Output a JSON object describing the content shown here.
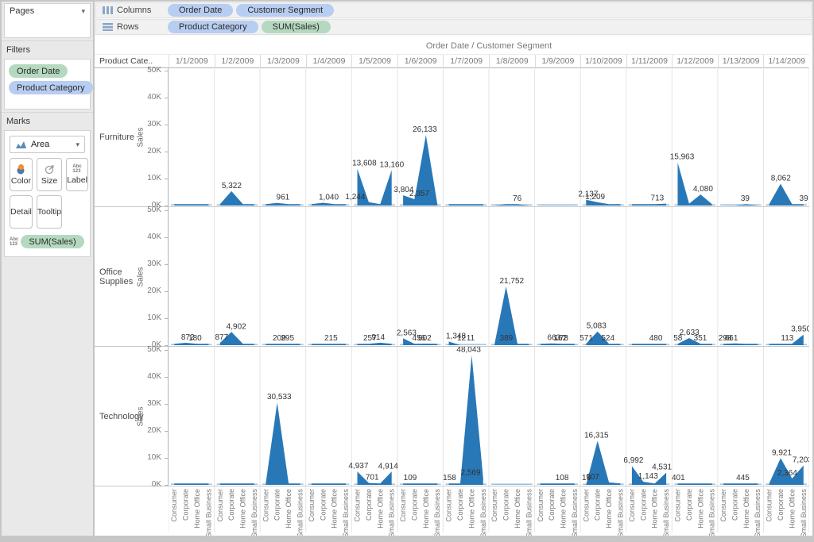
{
  "colors": {
    "area_blue": "#2878b8",
    "area_base_strip": "#9dc2de",
    "dimension_pill": "#b7cdf1",
    "measure_pill": "#b5d9c0",
    "icon_blue": "#4e79a7",
    "icon_orange": "#f28e2b"
  },
  "sidebar": {
    "pages_label": "Pages",
    "filters_label": "Filters",
    "filter_pills": [
      {
        "label": "Order Date",
        "kind": "measure"
      },
      {
        "label": "Product Category",
        "kind": "dimension"
      }
    ],
    "marks": {
      "label": "Marks",
      "mark_type": "Area",
      "buttons": [
        "Color",
        "Size",
        "Label",
        "Detail",
        "Tooltip"
      ],
      "pill_label": "SUM(Sales)"
    }
  },
  "shelves": {
    "columns_label": "Columns",
    "rows_label": "Rows",
    "columns_pills": [
      {
        "label": "Order Date",
        "kind": "dimension"
      },
      {
        "label": "Customer Segment",
        "kind": "dimension"
      }
    ],
    "rows_pills": [
      {
        "label": "Product Category",
        "kind": "dimension"
      },
      {
        "label": "SUM(Sales)",
        "kind": "measure"
      }
    ]
  },
  "chart_data": {
    "type": "area",
    "title": "Order Date  /  Customer Segment",
    "corner_label": "Product Cate..",
    "ylabel": "Sales",
    "yticks": [
      "0K",
      "10K",
      "20K",
      "30K",
      "40K",
      "50K"
    ],
    "ylim": [
      0,
      50000
    ],
    "grid": false,
    "dates": [
      "1/1/2009",
      "1/2/2009",
      "1/3/2009",
      "1/4/2009",
      "1/5/2009",
      "1/6/2009",
      "1/7/2009",
      "1/8/2009",
      "1/9/2009",
      "1/10/2009",
      "1/11/2009",
      "1/12/2009",
      "1/13/2009",
      "1/14/2009"
    ],
    "segments": [
      "Consumer",
      "Corporate",
      "Home Office",
      "Small Business"
    ],
    "rows": [
      {
        "category": "Furniture",
        "cells": [
          {
            "v": [
              250,
              180,
              140,
              90
            ],
            "labels": []
          },
          {
            "v": [
              80,
              5322,
              140,
              60
            ],
            "labels": [
              {
                "t": "5,322",
                "x": 0.38,
                "y": 5322
              }
            ]
          },
          {
            "v": [
              40,
              961,
              260,
              40
            ],
            "labels": [
              {
                "t": "961",
                "x": 0.5,
                "y": 961
              }
            ]
          },
          {
            "v": [
              40,
              1040,
              160,
              40
            ],
            "labels": [
              {
                "t": "1,040",
                "x": 0.5,
                "y": 1040
              }
            ]
          },
          {
            "v": [
              13608,
              1244,
              150,
              13160
            ],
            "labels": [
              {
                "t": "13,608",
                "x": 0.28,
                "y": 13608
              },
              {
                "t": "13,160",
                "x": 0.88,
                "y": 13160
              },
              {
                "t": "1,244",
                "x": 0.08,
                "y": 1244
              }
            ]
          },
          {
            "v": [
              3804,
              2357,
              26133,
              100
            ],
            "labels": [
              {
                "t": "3,804",
                "x": 0.14,
                "y": 3804
              },
              {
                "t": "26,133",
                "x": 0.6,
                "y": 26133
              },
              {
                "t": "2,357",
                "x": 0.48,
                "y": 2357
              }
            ]
          },
          {
            "v": [
              50,
              45,
              40,
              35
            ],
            "labels": []
          },
          {
            "v": [
              30,
              35,
              76,
              30
            ],
            "labels": [
              {
                "t": "76",
                "x": 0.62,
                "y": 76
              }
            ]
          },
          {
            "v": [
              30,
              30,
              30,
              30
            ],
            "labels": []
          },
          {
            "v": [
              2137,
              1209,
              250,
              80
            ],
            "labels": [
              {
                "t": "2,137",
                "x": 0.17,
                "y": 2137
              },
              {
                "t": "1,209",
                "x": 0.32,
                "y": 1209
              }
            ]
          },
          {
            "v": [
              35,
              40,
              200,
              713
            ],
            "labels": [
              {
                "t": "713",
                "x": 0.68,
                "y": 713
              }
            ]
          },
          {
            "v": [
              15963,
              700,
              4080,
              150
            ],
            "labels": [
              {
                "t": "15,963",
                "x": 0.22,
                "y": 15963
              },
              {
                "t": "4,080",
                "x": 0.68,
                "y": 4080
              }
            ]
          },
          {
            "v": [
              30,
              30,
              39,
              30
            ],
            "labels": [
              {
                "t": "39",
                "x": 0.6,
                "y": 39
              }
            ]
          },
          {
            "v": [
              250,
              8062,
              250,
              39
            ],
            "labels": [
              {
                "t": "8,062",
                "x": 0.38,
                "y": 8062
              },
              {
                "t": "39",
                "x": 0.88,
                "y": 39
              }
            ]
          }
        ]
      },
      {
        "category": "Office Supplies",
        "cells": [
          {
            "v": [
              90,
              872,
              180,
              50
            ],
            "labels": [
              {
                "t": "872",
                "x": 0.42,
                "y": 872
              },
              {
                "t": "180",
                "x": 0.58,
                "y": 180
              }
            ]
          },
          {
            "v": [
              877,
              4902,
              250,
              70
            ],
            "labels": [
              {
                "t": "4,902",
                "x": 0.48,
                "y": 4902
              },
              {
                "t": "877",
                "x": 0.16,
                "y": 877
              }
            ]
          },
          {
            "v": [
              50,
              209,
              295,
              50
            ],
            "labels": [
              {
                "t": "209",
                "x": 0.42,
                "y": 209
              },
              {
                "t": "295",
                "x": 0.6,
                "y": 295
              }
            ]
          },
          {
            "v": [
              45,
              85,
              215,
              45
            ],
            "labels": [
              {
                "t": "215",
                "x": 0.55,
                "y": 215
              }
            ]
          },
          {
            "v": [
              55,
              257,
              914,
              110
            ],
            "labels": [
              {
                "t": "257",
                "x": 0.4,
                "y": 257
              },
              {
                "t": "914",
                "x": 0.58,
                "y": 914
              }
            ]
          },
          {
            "v": [
              2563,
              456,
              602,
              70
            ],
            "labels": [
              {
                "t": "2,563",
                "x": 0.2,
                "y": 2563
              },
              {
                "t": "456",
                "x": 0.47,
                "y": 456
              },
              {
                "t": "602",
                "x": 0.6,
                "y": 602
              }
            ]
          },
          {
            "v": [
              1348,
              12,
              11,
              10
            ],
            "labels": [
              {
                "t": "1,348",
                "x": 0.28,
                "y": 1348
              },
              {
                "t": "12",
                "x": 0.4,
                "y": 12
              },
              {
                "t": "11",
                "x": 0.6,
                "y": 11
              }
            ]
          },
          {
            "v": [
              389,
              21752,
              350,
              90
            ],
            "labels": [
              {
                "t": "21,752",
                "x": 0.5,
                "y": 21752
              },
              {
                "t": "389",
                "x": 0.38,
                "y": 389
              }
            ]
          },
          {
            "v": [
              90,
              663,
              162,
              78
            ],
            "labels": [
              {
                "t": "663",
                "x": 0.42,
                "y": 663
              },
              {
                "t": "162",
                "x": 0.56,
                "y": 162
              },
              {
                "t": "78",
                "x": 0.64,
                "y": 78
              }
            ]
          },
          {
            "v": [
              571,
              5083,
              524,
              90
            ],
            "labels": [
              {
                "t": "5,083",
                "x": 0.35,
                "y": 5083
              },
              {
                "t": "571",
                "x": 0.13,
                "y": 571
              },
              {
                "t": "524",
                "x": 0.6,
                "y": 524
              }
            ]
          },
          {
            "v": [
              35,
              45,
              130,
              480
            ],
            "labels": [
              {
                "t": "480",
                "x": 0.65,
                "y": 480
              }
            ]
          },
          {
            "v": [
              58,
              2633,
              351,
              70
            ],
            "labels": [
              {
                "t": "2,633",
                "x": 0.38,
                "y": 2633
              },
              {
                "t": "58",
                "x": 0.13,
                "y": 58
              },
              {
                "t": "351",
                "x": 0.62,
                "y": 351
              }
            ]
          },
          {
            "v": [
              298,
              661,
              110,
              45
            ],
            "labels": [
              {
                "t": "298",
                "x": 0.16,
                "y": 298
              },
              {
                "t": "661",
                "x": 0.3,
                "y": 661
              }
            ]
          },
          {
            "v": [
              45,
              70,
              113,
              3950
            ],
            "labels": [
              {
                "t": "3,950",
                "x": 0.82,
                "y": 3950
              },
              {
                "t": "113",
                "x": 0.52,
                "y": 113
              }
            ]
          }
        ]
      },
      {
        "category": "Technology",
        "cells": [
          {
            "v": [
              35,
              35,
              35,
              35
            ],
            "labels": []
          },
          {
            "v": [
              35,
              35,
              35,
              35
            ],
            "labels": []
          },
          {
            "v": [
              90,
              30533,
              350,
              50
            ],
            "labels": [
              {
                "t": "30,533",
                "x": 0.42,
                "y": 30533
              }
            ]
          },
          {
            "v": [
              35,
              35,
              35,
              35
            ],
            "labels": []
          },
          {
            "v": [
              4937,
              701,
              350,
              4914
            ],
            "labels": [
              {
                "t": "4,937",
                "x": 0.15,
                "y": 4937
              },
              {
                "t": "4,914",
                "x": 0.8,
                "y": 4914
              },
              {
                "t": "701",
                "x": 0.45,
                "y": 701
              }
            ]
          },
          {
            "v": [
              50,
              109,
              50,
              35
            ],
            "labels": [
              {
                "t": "109",
                "x": 0.28,
                "y": 109
              }
            ]
          },
          {
            "v": [
              158,
              250,
              48043,
              2569
            ],
            "labels": [
              {
                "t": "158",
                "x": 0.14,
                "y": 158
              },
              {
                "t": "48,043",
                "x": 0.56,
                "y": 48043
              },
              {
                "t": "2,569",
                "x": 0.6,
                "y": 2569
              }
            ]
          },
          {
            "v": [
              30,
              30,
              30,
              30
            ],
            "labels": []
          },
          {
            "v": [
              35,
              55,
              108,
              35
            ],
            "labels": [
              {
                "t": "108",
                "x": 0.6,
                "y": 108
              }
            ]
          },
          {
            "v": [
              16,
              16315,
              907,
              130
            ],
            "labels": [
              {
                "t": "16,315",
                "x": 0.35,
                "y": 16315
              },
              {
                "t": "16",
                "x": 0.13,
                "y": 16
              },
              {
                "t": "907",
                "x": 0.27,
                "y": 907
              }
            ]
          },
          {
            "v": [
              6992,
              1143,
              450,
              4531
            ],
            "labels": [
              {
                "t": "6,992",
                "x": 0.16,
                "y": 6992
              },
              {
                "t": "4,531",
                "x": 0.78,
                "y": 4531
              },
              {
                "t": "1,143",
                "x": 0.48,
                "y": 1143
              }
            ]
          },
          {
            "v": [
              401,
              130,
              50,
              35
            ],
            "labels": [
              {
                "t": "401",
                "x": 0.14,
                "y": 401
              }
            ]
          },
          {
            "v": [
              90,
              330,
              445,
              90
            ],
            "labels": [
              {
                "t": "445",
                "x": 0.55,
                "y": 445
              }
            ]
          },
          {
            "v": [
              450,
              9921,
              2364,
              7203
            ],
            "labels": [
              {
                "t": "9,921",
                "x": 0.4,
                "y": 9921
              },
              {
                "t": "7,203",
                "x": 0.85,
                "y": 7203
              },
              {
                "t": "2,364",
                "x": 0.52,
                "y": 2364
              }
            ]
          }
        ]
      }
    ]
  }
}
